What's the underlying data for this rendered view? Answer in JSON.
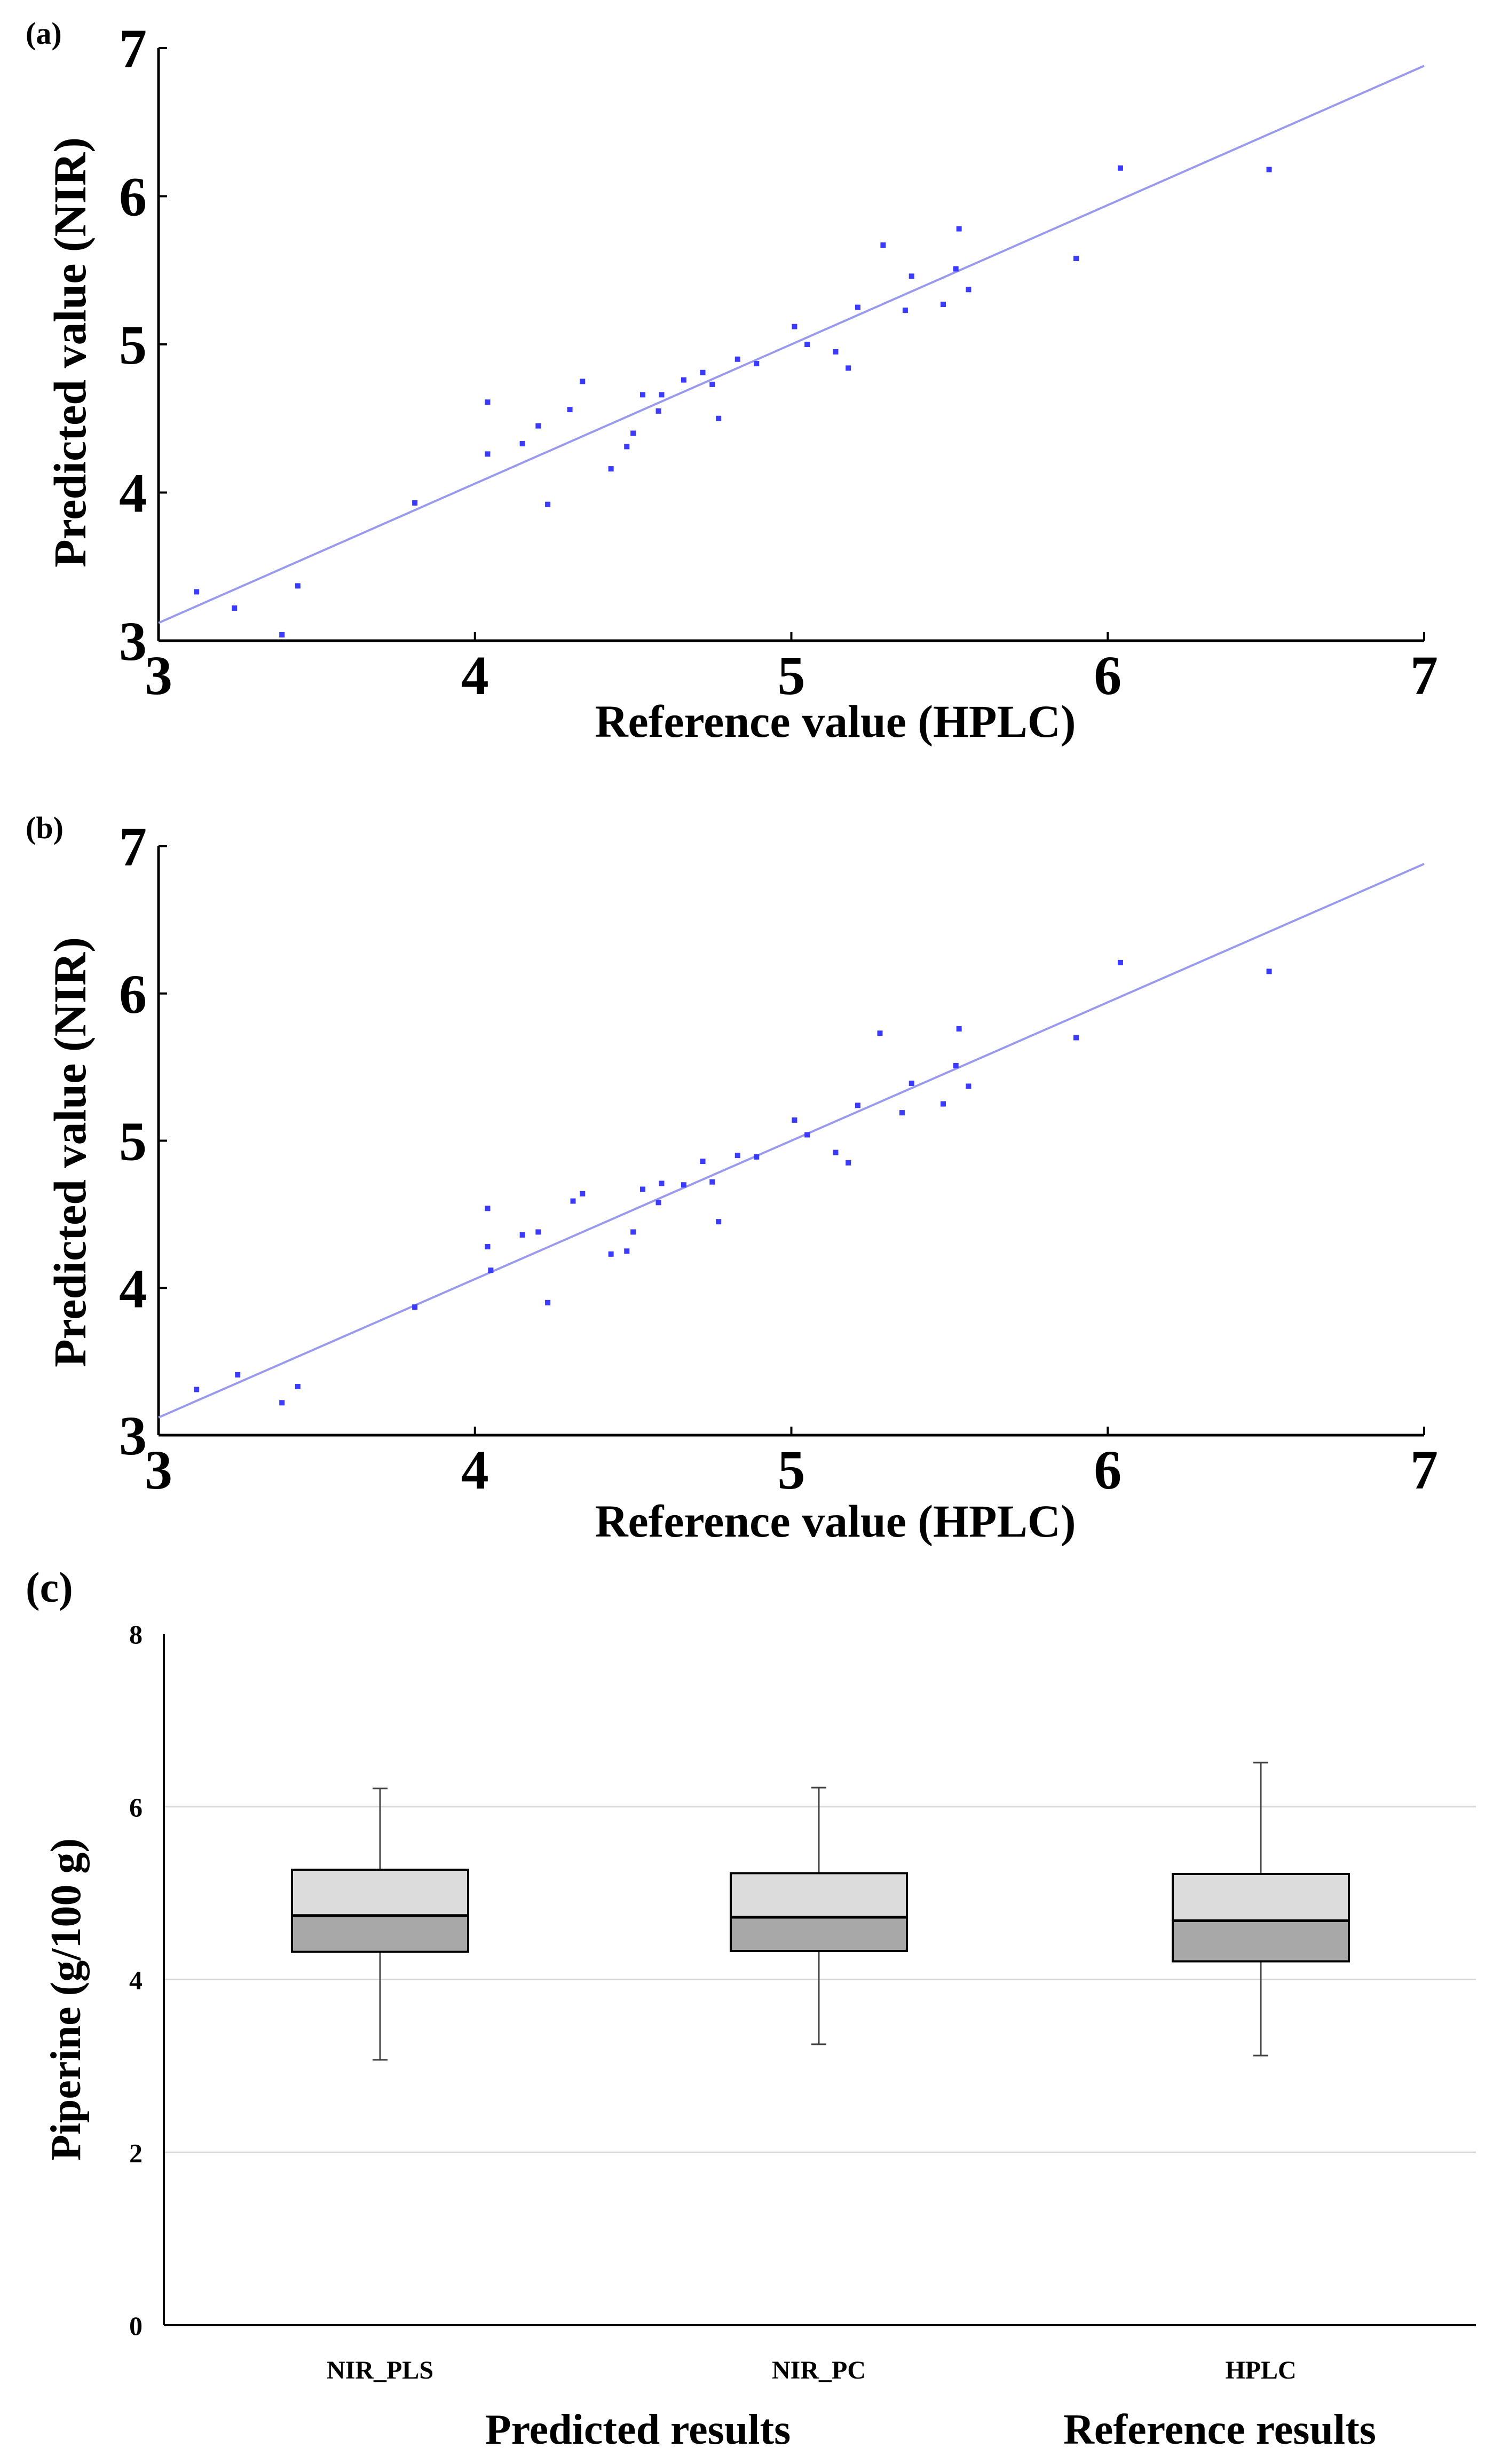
{
  "chart_data": [
    {
      "panel": "(a)",
      "type": "scatter",
      "xlabel": "Reference value (HPLC)",
      "ylabel": "Predicted value (NIR)",
      "xlim": [
        3,
        7
      ],
      "ylim": [
        3,
        7
      ],
      "xticks": [
        "3",
        "4",
        "5",
        "6",
        "7"
      ],
      "yticks": [
        "3",
        "4",
        "5",
        "6",
        "7"
      ],
      "point_color": "#3b3bff",
      "line_color": "#9999ee",
      "fit_line": [
        [
          3.0,
          3.12
        ],
        [
          7.0,
          6.88
        ]
      ],
      "points": [
        [
          3.12,
          3.33
        ],
        [
          3.24,
          3.22
        ],
        [
          3.39,
          3.04
        ],
        [
          3.44,
          3.37
        ],
        [
          3.81,
          3.93
        ],
        [
          4.04,
          4.26
        ],
        [
          4.04,
          4.61
        ],
        [
          4.15,
          4.33
        ],
        [
          4.2,
          4.45
        ],
        [
          4.23,
          3.92
        ],
        [
          4.3,
          4.56
        ],
        [
          4.34,
          4.75
        ],
        [
          4.43,
          4.16
        ],
        [
          4.48,
          4.31
        ],
        [
          4.5,
          4.4
        ],
        [
          4.53,
          4.66
        ],
        [
          4.58,
          4.55
        ],
        [
          4.59,
          4.66
        ],
        [
          4.66,
          4.76
        ],
        [
          4.72,
          4.81
        ],
        [
          4.75,
          4.73
        ],
        [
          4.77,
          4.5
        ],
        [
          4.83,
          4.9
        ],
        [
          4.89,
          4.87
        ],
        [
          5.01,
          5.12
        ],
        [
          5.05,
          5.0
        ],
        [
          5.14,
          4.95
        ],
        [
          5.18,
          4.84
        ],
        [
          5.21,
          5.25
        ],
        [
          5.29,
          5.67
        ],
        [
          5.36,
          5.23
        ],
        [
          5.38,
          5.46
        ],
        [
          5.48,
          5.27
        ],
        [
          5.52,
          5.51
        ],
        [
          5.53,
          5.78
        ],
        [
          5.56,
          5.37
        ],
        [
          5.9,
          5.58
        ],
        [
          6.04,
          6.19
        ],
        [
          6.51,
          6.18
        ]
      ]
    },
    {
      "panel": "(b)",
      "type": "scatter",
      "xlabel": "Reference value (HPLC)",
      "ylabel": "Predicted value (NIR)",
      "xlim": [
        3,
        7
      ],
      "ylim": [
        3,
        7
      ],
      "xticks": [
        "3",
        "4",
        "5",
        "6",
        "7"
      ],
      "yticks": [
        "3",
        "4",
        "5",
        "6",
        "7"
      ],
      "point_color": "#3b3bff",
      "line_color": "#9999ee",
      "fit_line": [
        [
          3.0,
          3.12
        ],
        [
          7.0,
          6.88
        ]
      ],
      "points": [
        [
          3.12,
          3.31
        ],
        [
          3.25,
          3.41
        ],
        [
          3.39,
          3.22
        ],
        [
          3.44,
          3.33
        ],
        [
          3.81,
          3.87
        ],
        [
          4.04,
          4.28
        ],
        [
          4.04,
          4.54
        ],
        [
          4.05,
          4.12
        ],
        [
          4.15,
          4.36
        ],
        [
          4.2,
          4.38
        ],
        [
          4.23,
          3.9
        ],
        [
          4.31,
          4.59
        ],
        [
          4.34,
          4.64
        ],
        [
          4.43,
          4.23
        ],
        [
          4.48,
          4.25
        ],
        [
          4.5,
          4.38
        ],
        [
          4.53,
          4.67
        ],
        [
          4.58,
          4.58
        ],
        [
          4.59,
          4.71
        ],
        [
          4.66,
          4.7
        ],
        [
          4.72,
          4.86
        ],
        [
          4.75,
          4.72
        ],
        [
          4.77,
          4.45
        ],
        [
          4.83,
          4.9
        ],
        [
          4.89,
          4.89
        ],
        [
          5.01,
          5.14
        ],
        [
          5.05,
          5.04
        ],
        [
          5.14,
          4.92
        ],
        [
          5.18,
          4.85
        ],
        [
          5.21,
          5.24
        ],
        [
          5.28,
          5.73
        ],
        [
          5.35,
          5.19
        ],
        [
          5.38,
          5.39
        ],
        [
          5.48,
          5.25
        ],
        [
          5.52,
          5.51
        ],
        [
          5.53,
          5.76
        ],
        [
          5.56,
          5.37
        ],
        [
          5.9,
          5.7
        ],
        [
          6.04,
          6.21
        ],
        [
          6.51,
          6.15
        ]
      ]
    },
    {
      "panel": "(c)",
      "type": "box",
      "ylabel": "Piperine (g/100 g)",
      "ylim": [
        0,
        8
      ],
      "yticks": [
        "0",
        "2",
        "4",
        "6",
        "8"
      ],
      "categories": [
        "NIR_PLS",
        "NIR_PC",
        "HPLC"
      ],
      "boxes": [
        {
          "name": "NIR_PLS",
          "min": 3.07,
          "q1": 4.32,
          "median": 4.74,
          "q3": 5.27,
          "max": 6.21
        },
        {
          "name": "NIR_PC",
          "min": 3.25,
          "q1": 4.33,
          "median": 4.72,
          "q3": 5.23,
          "max": 6.22
        },
        {
          "name": "HPLC",
          "min": 3.12,
          "q1": 4.21,
          "median": 4.68,
          "q3": 5.22,
          "max": 6.51
        }
      ],
      "upper_box_color": "#dcdcdc",
      "lower_box_color": "#a8a8a8",
      "group_labels": [
        "Predicted  results",
        "Reference results"
      ]
    }
  ]
}
